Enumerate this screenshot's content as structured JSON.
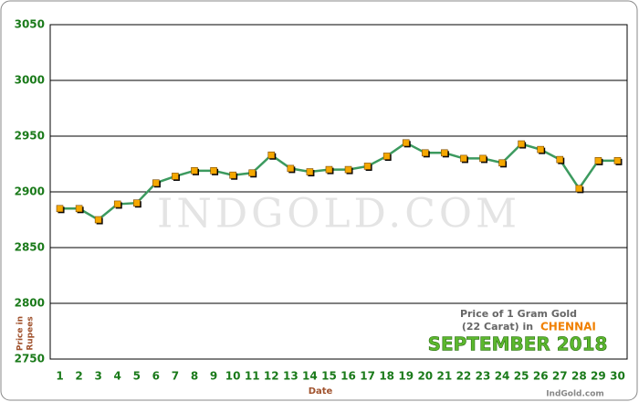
{
  "chart_data": {
    "type": "line",
    "categories": [
      "1",
      "2",
      "3",
      "4",
      "5",
      "6",
      "7",
      "8",
      "9",
      "10",
      "11",
      "12",
      "13",
      "14",
      "15",
      "16",
      "17",
      "18",
      "19",
      "20",
      "21",
      "22",
      "23",
      "24",
      "25",
      "26",
      "27",
      "28",
      "29",
      "30"
    ],
    "values": [
      2885,
      2885,
      2875,
      2889,
      2890,
      2908,
      2914,
      2919,
      2919,
      2915,
      2917,
      2933,
      2921,
      2918,
      2920,
      2920,
      2923,
      2932,
      2944,
      2935,
      2935,
      2930,
      2930,
      2926,
      2943,
      2938,
      2929,
      2903,
      2928,
      2928
    ],
    "color": "#3c9a5f",
    "marker_color": "#f5a800",
    "ylim": [
      2750,
      3050
    ],
    "yticks": [
      2750,
      2800,
      2850,
      2900,
      2950,
      3000,
      3050
    ],
    "grid": true,
    "x_label": "Date",
    "y_label_lines": [
      "Price in",
      "Rupees"
    ],
    "watermark": "INDGOLD.COM",
    "legend_text": {
      "line1": "Price of 1 Gram Gold",
      "line2": "(22 Carat) in",
      "city": "CHENNAI",
      "month": "SEPTEMBER 2018"
    },
    "source": "IndGold.com"
  }
}
